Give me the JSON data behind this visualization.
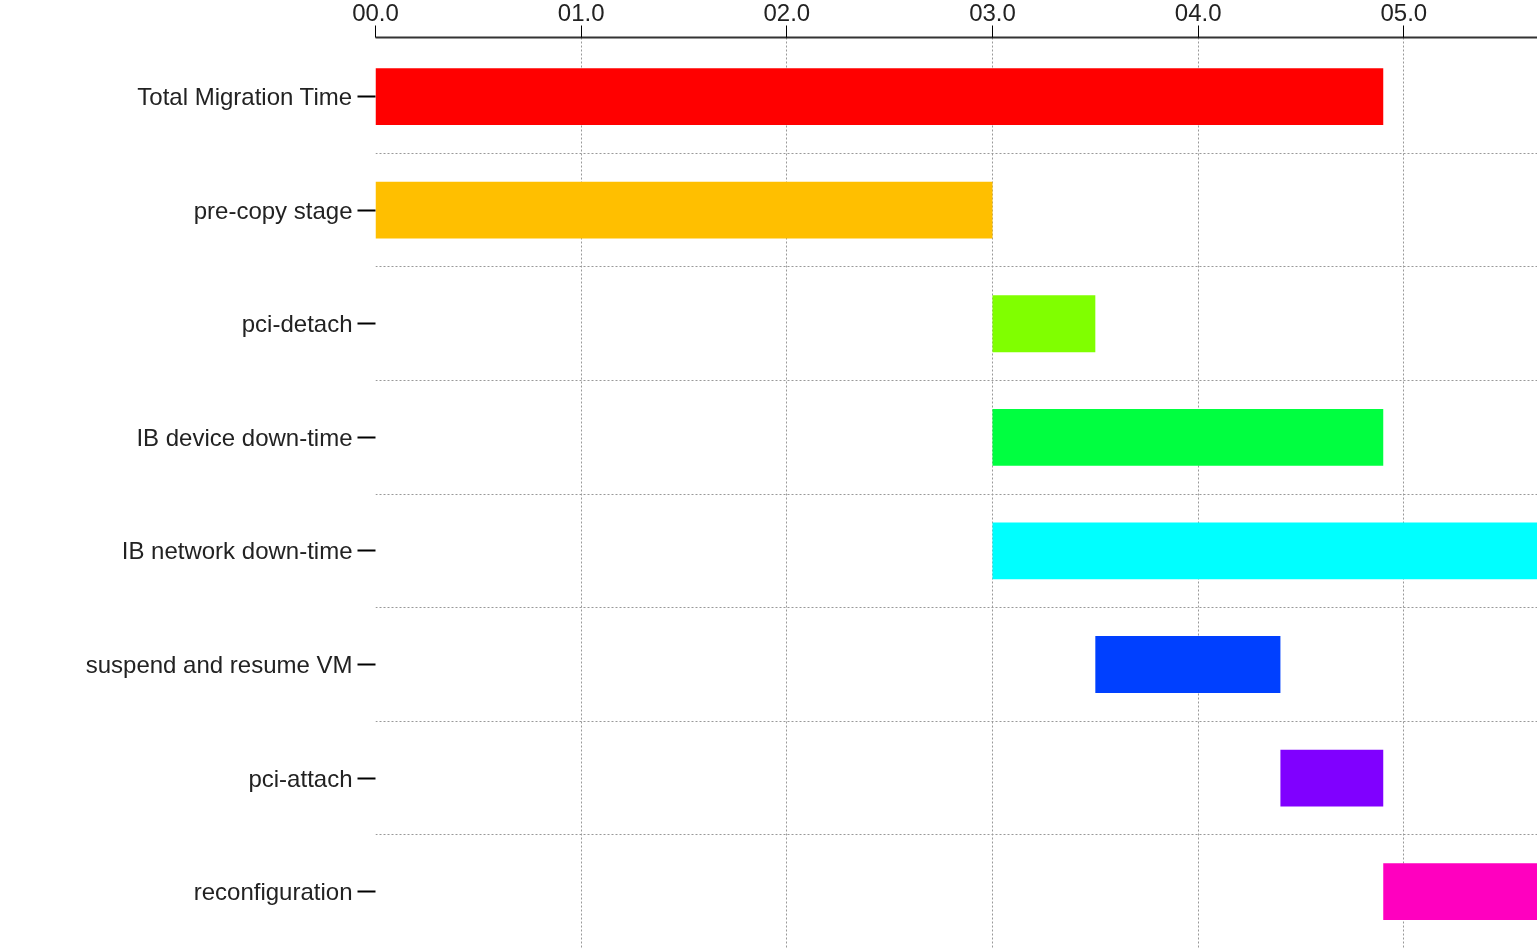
{
  "chart_data": {
    "type": "bar",
    "orientation": "horizontal",
    "categories": [
      "Total Migration Time",
      "pre-copy stage",
      "pci-detach",
      "IB device down-time",
      "IB network down-time",
      "suspend and resume VM",
      "pci-attach",
      "reconfiguration"
    ],
    "base": [
      0,
      0,
      3.0,
      3.0,
      3.0,
      3.5,
      4.4,
      4.9
    ],
    "values": [
      4.9,
      3.0,
      0.5,
      1.9,
      2.65,
      0.9,
      0.5,
      0.75
    ],
    "colors": [
      "#ff0000",
      "#ffbf00",
      "#80ff00",
      "#00ff40",
      "#00ffff",
      "#0040ff",
      "#8000ff",
      "#ff00bf"
    ],
    "xlim": [
      0,
      5.65
    ],
    "xticks": [
      {
        "value": 0,
        "label": "00.0"
      },
      {
        "value": 1,
        "label": "01.0"
      },
      {
        "value": 2,
        "label": "02.0"
      },
      {
        "value": 3,
        "label": "03.0"
      },
      {
        "value": 4,
        "label": "04.0"
      },
      {
        "value": 5,
        "label": "05.0"
      }
    ],
    "grid": true
  }
}
